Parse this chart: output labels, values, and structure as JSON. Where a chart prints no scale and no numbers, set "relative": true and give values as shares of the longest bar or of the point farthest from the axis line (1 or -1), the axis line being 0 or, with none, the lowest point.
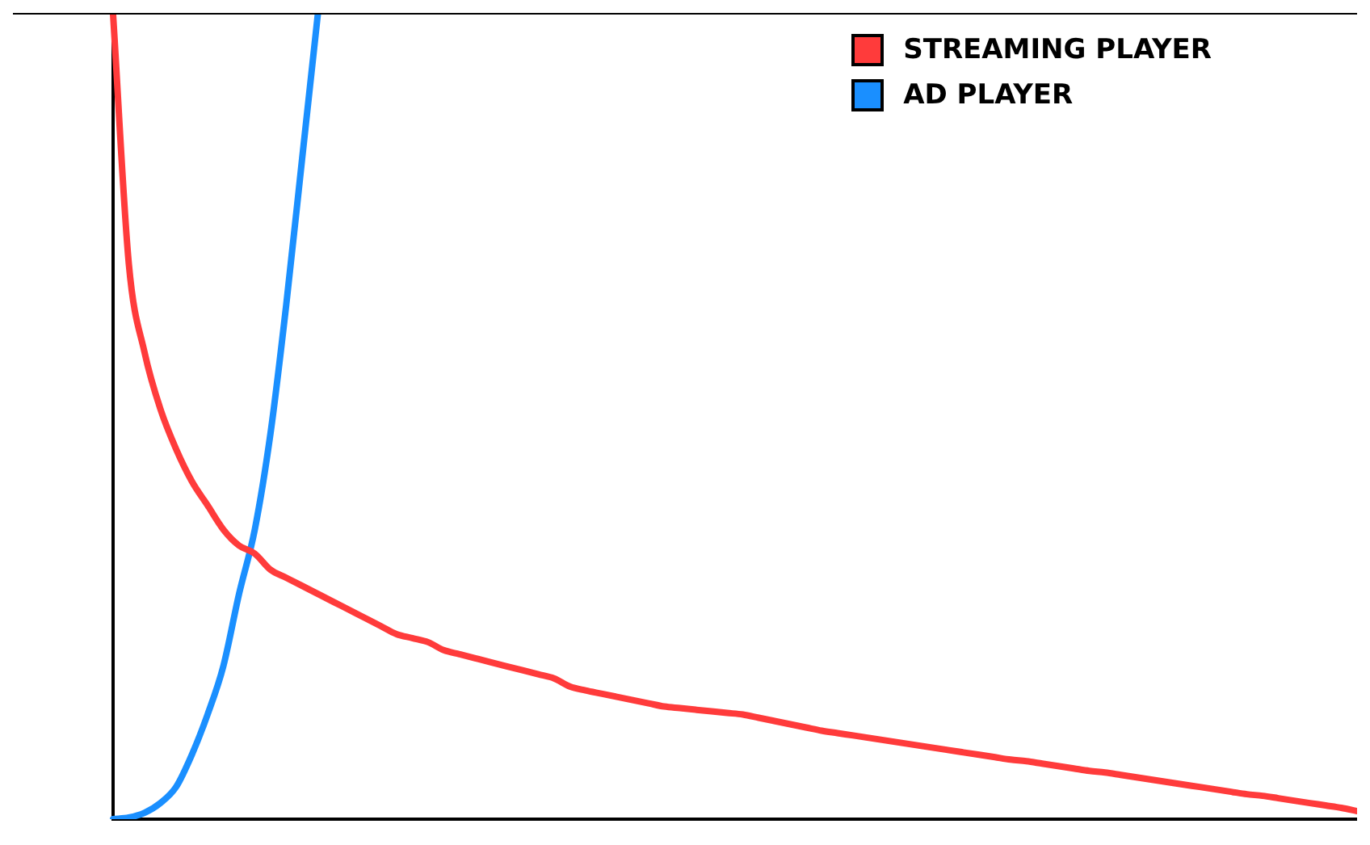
{
  "chart_data": {
    "type": "line",
    "relative": true,
    "legend": "top right",
    "categories": [
      null,
      null,
      null,
      null,
      null,
      null,
      null,
      null,
      null,
      null,
      null,
      null,
      null,
      null,
      null,
      null,
      null,
      null,
      null,
      null,
      null,
      null,
      null,
      null,
      null,
      null,
      null,
      null,
      null,
      null,
      null,
      null,
      null,
      null,
      null,
      null,
      null,
      null,
      null,
      null,
      null,
      null,
      null,
      null,
      null,
      null,
      null,
      null,
      null,
      null,
      null,
      null,
      null,
      null,
      null,
      null,
      null,
      null,
      null,
      null,
      null,
      null,
      null,
      null,
      null,
      null,
      null,
      null,
      null,
      null,
      null,
      null,
      null,
      null,
      null,
      null,
      null,
      null,
      null,
      null
    ],
    "series": [
      {
        "name": "STREAMING PLAYER",
        "color": "#ff3b3b",
        "values": [
          1.0,
          0.69,
          0.58,
          0.51,
          0.46,
          0.42,
          0.39,
          0.36,
          0.34,
          0.33,
          0.31,
          0.3,
          0.29,
          0.28,
          0.27,
          0.26,
          0.25,
          0.24,
          0.23,
          0.225,
          0.22,
          0.21,
          0.205,
          0.2,
          0.195,
          0.19,
          0.185,
          0.18,
          0.175,
          0.165,
          0.16,
          0.156,
          0.152,
          0.148,
          0.144,
          0.14,
          0.138,
          0.136,
          0.134,
          0.132,
          0.13,
          0.126,
          0.122,
          0.118,
          0.114,
          0.11,
          0.107,
          0.104,
          0.101,
          0.098,
          0.095,
          0.092,
          0.089,
          0.086,
          0.083,
          0.08,
          0.077,
          0.074,
          0.072,
          0.069,
          0.066,
          0.063,
          0.06,
          0.058,
          0.055,
          0.052,
          0.049,
          0.046,
          0.043,
          0.04,
          0.037,
          0.034,
          0.031,
          0.029,
          0.026,
          0.023,
          0.02,
          0.017,
          0.014,
          0.01
        ]
      },
      {
        "name": "AD PLAYER",
        "color": "#1a8fff",
        "values": [
          0,
          0.002,
          0.008,
          0.02,
          0.04,
          0.08,
          0.13,
          0.19,
          0.28,
          0.36,
          0.48,
          0.64,
          0.82,
          1.0,
          null,
          null,
          null,
          null,
          null,
          null,
          null,
          null,
          null,
          null,
          null,
          null,
          null,
          null,
          null,
          null,
          null,
          null,
          null,
          null,
          null,
          null,
          null,
          null,
          null,
          null,
          null,
          null,
          null,
          null,
          null,
          null,
          null,
          null,
          null,
          null,
          null,
          null,
          null,
          null,
          null,
          null,
          null,
          null,
          null,
          null,
          null,
          null,
          null,
          null,
          null,
          null,
          null,
          null,
          null,
          null,
          null,
          null,
          null,
          null,
          null,
          null,
          null,
          null,
          null,
          null
        ]
      }
    ]
  }
}
